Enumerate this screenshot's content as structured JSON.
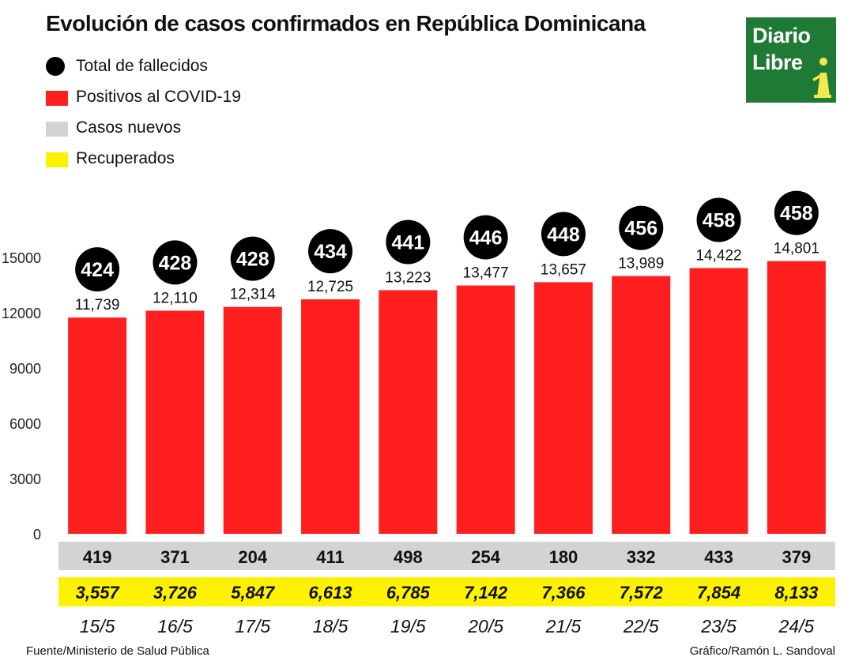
{
  "header": {
    "title": "Evolución de casos confirmados en República Dominicana"
  },
  "logo": {
    "line1": "Diario",
    "line2": "Libre",
    "background": "#1f7a36"
  },
  "legend": {
    "items": [
      {
        "label": "Total de fallecidos",
        "color": "#000000",
        "shape": "circle"
      },
      {
        "label": "Positivos al COVID-19",
        "color": "#ff1f1f",
        "shape": "rect"
      },
      {
        "label": "Casos nuevos",
        "color": "#d3d3d3",
        "shape": "rect"
      },
      {
        "label": "Recuperados",
        "color": "#fff200",
        "shape": "rect"
      }
    ]
  },
  "chart_data": {
    "type": "bar",
    "title": "Evolución de casos confirmados en República Dominicana",
    "categories": [
      "15/5",
      "16/5",
      "17/5",
      "18/5",
      "19/5",
      "20/5",
      "21/5",
      "22/5",
      "23/5",
      "24/5"
    ],
    "ylim": [
      0,
      15000
    ],
    "yticks": [
      "15000",
      "12000",
      "9000",
      "6000",
      "3000",
      "0"
    ],
    "series": [
      {
        "name": "Positivos al COVID-19",
        "values": [
          11739,
          12110,
          12314,
          12725,
          13223,
          13477,
          13657,
          13989,
          14422,
          14801
        ],
        "labels": [
          "11,739",
          "12,110",
          "12,314",
          "12,725",
          "13,223",
          "13,477",
          "13,657",
          "13,989",
          "14,422",
          "14,801"
        ],
        "color": "#ff1f1f"
      },
      {
        "name": "Total de fallecidos",
        "values": [
          424,
          428,
          428,
          434,
          441,
          446,
          448,
          456,
          458,
          458
        ],
        "labels": [
          "424",
          "428",
          "428",
          "434",
          "441",
          "446",
          "448",
          "456",
          "458",
          "458"
        ],
        "color": "#000000"
      },
      {
        "name": "Casos nuevos",
        "values": [
          419,
          371,
          204,
          411,
          498,
          254,
          180,
          332,
          433,
          379
        ],
        "labels": [
          "419",
          "371",
          "204",
          "411",
          "498",
          "254",
          "180",
          "332",
          "433",
          "379"
        ],
        "color": "#d3d3d3"
      },
      {
        "name": "Recuperados",
        "values": [
          3557,
          3726,
          5847,
          6613,
          6785,
          7142,
          7366,
          7572,
          7854,
          8133
        ],
        "labels": [
          "3,557",
          "3,726",
          "5,847",
          "6,613",
          "6,785",
          "7,142",
          "7,366",
          "7,572",
          "7,854",
          "8,133"
        ],
        "color": "#fff200"
      }
    ],
    "grid": false,
    "legend": "top-left"
  },
  "footer": {
    "source": "Fuente/Ministerio de Salud Pública",
    "credit": "Gráfico/Ramón L. Sandoval"
  }
}
